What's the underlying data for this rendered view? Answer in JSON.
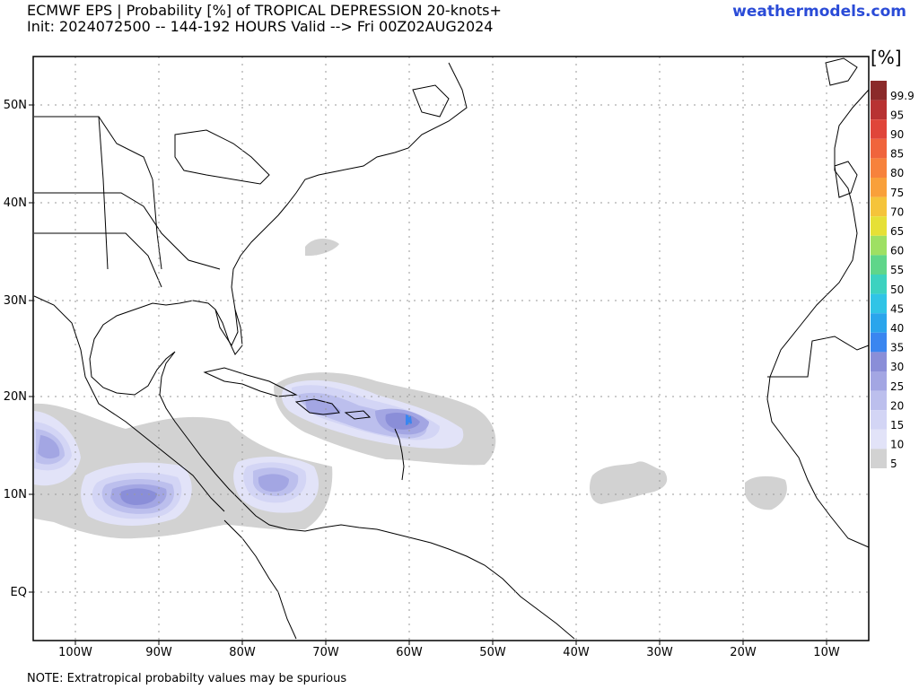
{
  "header": {
    "title_line1": "ECMWF EPS | Probability [%] of TROPICAL DEPRESSION 20-knots+",
    "title_line2": "Init: 2024072500 -- 144-192 HOURS Valid --> Fri 00Z02AUG2024",
    "site": "weathermodels.com"
  },
  "footer": {
    "note": "NOTE: Extratropical probabilty values may be spurious"
  },
  "colorbar": {
    "unit": "[%]",
    "levels": [
      {
        "label": "99.9",
        "color": "#8b2a2a"
      },
      {
        "label": "95",
        "color": "#b83232"
      },
      {
        "label": "90",
        "color": "#e0453a"
      },
      {
        "label": "85",
        "color": "#f0643c"
      },
      {
        "label": "80",
        "color": "#f7823c"
      },
      {
        "label": "75",
        "color": "#f9a03a"
      },
      {
        "label": "70",
        "color": "#f5c43a"
      },
      {
        "label": "65",
        "color": "#e6e036"
      },
      {
        "label": "60",
        "color": "#9ee063"
      },
      {
        "label": "55",
        "color": "#5fd68a"
      },
      {
        "label": "50",
        "color": "#3cd2c0"
      },
      {
        "label": "45",
        "color": "#30c4e6"
      },
      {
        "label": "40",
        "color": "#2aa5ec"
      },
      {
        "label": "35",
        "color": "#3a86f0"
      },
      {
        "label": "30",
        "color": "#8a8ed8"
      },
      {
        "label": "25",
        "color": "#a3a6e3"
      },
      {
        "label": "20",
        "color": "#bcbfed"
      },
      {
        "label": "15",
        "color": "#d3d5f5"
      },
      {
        "label": "10",
        "color": "#e2e3f8"
      },
      {
        "label": "5",
        "color": "#d2d2d2"
      }
    ]
  },
  "axes": {
    "lat_labels": [
      "50N",
      "40N",
      "30N",
      "20N",
      "10N",
      "EQ"
    ],
    "lon_labels": [
      "100W",
      "90W",
      "80W",
      "70W",
      "60W",
      "50W",
      "40W",
      "30W",
      "20W",
      "10W"
    ]
  }
}
